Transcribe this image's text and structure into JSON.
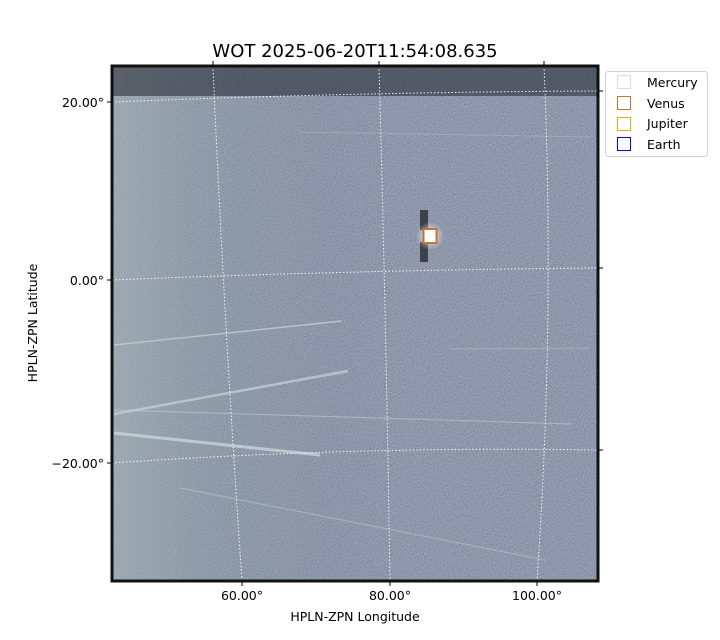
{
  "chart_data": {
    "type": "heatmap",
    "title": "WOT 2025-06-20T11:54:08.635",
    "xlabel": "HPLN-ZPN Longitude",
    "ylabel": "HPLN-ZPN Latitude",
    "x_ticks": [
      "60.00°",
      "80.00°",
      "100.00°"
    ],
    "y_ticks": [
      "20.00°",
      "0.00°",
      "−20.00°"
    ],
    "x_tick_values": [
      60,
      80,
      100
    ],
    "y_tick_values": [
      20,
      0,
      -20
    ],
    "xlim": [
      42.5,
      108
    ],
    "ylim": [
      -33,
      24
    ],
    "grid": true,
    "colormap": "bone",
    "legend": {
      "placement": "outside-top-right",
      "entries": [
        {
          "name": "Mercury",
          "color": "#dddddd"
        },
        {
          "name": "Venus",
          "color": "#c87533"
        },
        {
          "name": "Jupiter",
          "color": "#ffa500"
        },
        {
          "name": "Earth",
          "color": "#0000ff"
        }
      ]
    },
    "markers": [
      {
        "name": "Venus",
        "lon": 85.5,
        "lat": 5.0,
        "color": "#c87533"
      }
    ]
  }
}
